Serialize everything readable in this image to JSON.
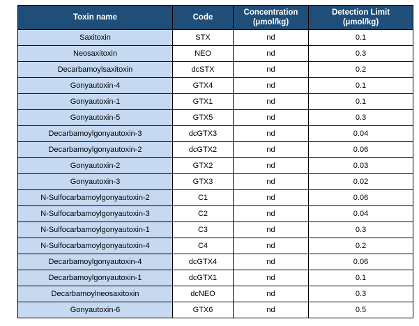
{
  "colors": {
    "header_bg": "#1f4e79",
    "header_text": "#ffffff",
    "name_column_bg": "#c6d9f1",
    "body_bg": "#ffffff",
    "border": "#000000"
  },
  "table": {
    "headers": [
      "Toxin name",
      "Code",
      "Concentration\n(µmol/kg)",
      "Detection Limit\n(µmol/kg)"
    ],
    "rows": [
      {
        "name": "Saxitoxin",
        "code": "STX",
        "concentration": "nd",
        "detection_limit": "0.1"
      },
      {
        "name": "Neosaxitoxin",
        "code": "NEO",
        "concentration": "nd",
        "detection_limit": "0.3"
      },
      {
        "name": "Decarbamoylsaxitoxin",
        "code": "dcSTX",
        "concentration": "nd",
        "detection_limit": "0.2"
      },
      {
        "name": "Gonyautoxin-4",
        "code": "GTX4",
        "concentration": "nd",
        "detection_limit": "0.1"
      },
      {
        "name": "Gonyautoxin-1",
        "code": "GTX1",
        "concentration": "nd",
        "detection_limit": "0.1"
      },
      {
        "name": "Gonyautoxin-5",
        "code": "GTX5",
        "concentration": "nd",
        "detection_limit": "0.3"
      },
      {
        "name": "Decarbamoylgonyautoxin-3",
        "code": "dcGTX3",
        "concentration": "nd",
        "detection_limit": "0.04"
      },
      {
        "name": "Decarbamoylgonyautoxin-2",
        "code": "dcGTX2",
        "concentration": "nd",
        "detection_limit": "0.06"
      },
      {
        "name": "Gonyautoxin-2",
        "code": "GTX2",
        "concentration": "nd",
        "detection_limit": "0.03"
      },
      {
        "name": "Gonyautoxin-3",
        "code": "GTX3",
        "concentration": "nd",
        "detection_limit": "0.02"
      },
      {
        "name": "N-Sulfocarbamoylgonyautoxin-2",
        "code": "C1",
        "concentration": "nd",
        "detection_limit": "0.06"
      },
      {
        "name": "N-Sulfocarbamoylgonyautoxin-3",
        "code": "C2",
        "concentration": "nd",
        "detection_limit": "0.04"
      },
      {
        "name": "N-Sulfocarbamoylgonyautoxin-1",
        "code": "C3",
        "concentration": "nd",
        "detection_limit": "0.3"
      },
      {
        "name": "N-Sulfocarbamoylgonyautoxin-4",
        "code": "C4",
        "concentration": "nd",
        "detection_limit": "0.2"
      },
      {
        "name": "Decarbamoylgonyautoxin-4",
        "code": "dcGTX4",
        "concentration": "nd",
        "detection_limit": "0.06"
      },
      {
        "name": "Decarbamoylgonyautoxin-1",
        "code": "dcGTX1",
        "concentration": "nd",
        "detection_limit": "0.1"
      },
      {
        "name": "Decarbamoylneosaxitoxin",
        "code": "dcNEO",
        "concentration": "nd",
        "detection_limit": "0.3"
      },
      {
        "name": "Gonyautoxin-6",
        "code": "GTX6",
        "concentration": "nd",
        "detection_limit": "0.5"
      }
    ]
  }
}
